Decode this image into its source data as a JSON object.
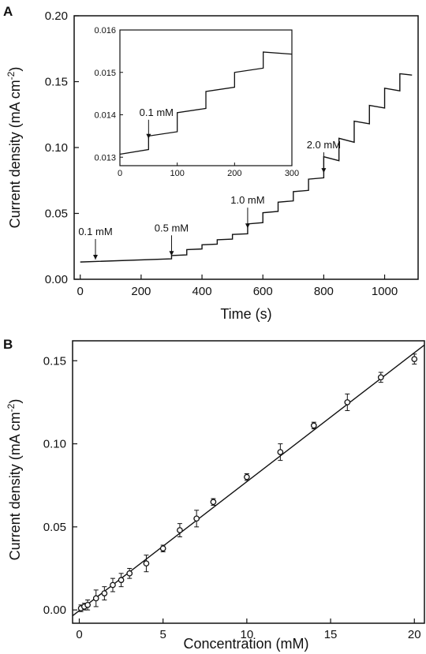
{
  "chart_data": [
    {
      "panel": "A",
      "type": "line",
      "xlabel": "Time (s)",
      "ylabel": "Current density (mA cm-2)",
      "ylabel_main": "Current density (mA cm",
      "ylabel_sup": "-2",
      "ylabel_close": ")",
      "xlim": [
        -20,
        1110
      ],
      "ylim": [
        0,
        0.2
      ],
      "xticks": [
        0,
        200,
        400,
        600,
        800,
        1000
      ],
      "yticks": [
        0.0,
        0.05,
        0.1,
        0.15,
        0.2
      ],
      "ytick_labels": [
        "0.00",
        "0.05",
        "0.10",
        "0.15",
        "0.20"
      ],
      "xtick_labels": [
        "0",
        "200",
        "400",
        "600",
        "800",
        "1000"
      ],
      "steps": [
        {
          "start": 0,
          "end": 300,
          "y0": 0.0131,
          "y1": 0.0155
        },
        {
          "start": 300,
          "end": 350,
          "y0": 0.018,
          "y1": 0.0185
        },
        {
          "start": 350,
          "end": 400,
          "y0": 0.0225,
          "y1": 0.023
        },
        {
          "start": 400,
          "end": 450,
          "y0": 0.0262,
          "y1": 0.0267
        },
        {
          "start": 450,
          "end": 500,
          "y0": 0.03,
          "y1": 0.0305
        },
        {
          "start": 500,
          "end": 550,
          "y0": 0.034,
          "y1": 0.0345
        },
        {
          "start": 550,
          "end": 600,
          "y0": 0.042,
          "y1": 0.043
        },
        {
          "start": 600,
          "end": 650,
          "y0": 0.0505,
          "y1": 0.0515
        },
        {
          "start": 650,
          "end": 700,
          "y0": 0.0585,
          "y1": 0.0595
        },
        {
          "start": 700,
          "end": 750,
          "y0": 0.0665,
          "y1": 0.0675
        },
        {
          "start": 750,
          "end": 800,
          "y0": 0.076,
          "y1": 0.077
        },
        {
          "start": 800,
          "end": 850,
          "y0": 0.093,
          "y1": 0.09
        },
        {
          "start": 850,
          "end": 900,
          "y0": 0.107,
          "y1": 0.104
        },
        {
          "start": 900,
          "end": 950,
          "y0": 0.12,
          "y1": 0.118
        },
        {
          "start": 950,
          "end": 1000,
          "y0": 0.132,
          "y1": 0.13
        },
        {
          "start": 1000,
          "end": 1050,
          "y0": 0.145,
          "y1": 0.143
        },
        {
          "start": 1050,
          "end": 1090,
          "y0": 0.156,
          "y1": 0.155
        }
      ],
      "annotations": [
        {
          "text": "0.1 mM",
          "x": 50,
          "y": 0.0132
        },
        {
          "text": "0.5 mM",
          "x": 300,
          "y": 0.016
        },
        {
          "text": "1.0 mM",
          "x": 550,
          "y": 0.037
        },
        {
          "text": "2.0 mM",
          "x": 800,
          "y": 0.079
        }
      ],
      "inset": {
        "xlim": [
          0,
          300
        ],
        "ylim": [
          0.0128,
          0.016
        ],
        "xticks": [
          0,
          100,
          200,
          300
        ],
        "xtick_labels": [
          "0",
          "100",
          "200",
          "300"
        ],
        "yticks": [
          0.013,
          0.014,
          0.015,
          0.016
        ],
        "ytick_labels": [
          "0.013",
          "0.014",
          "0.015",
          "0.016"
        ],
        "steps": [
          {
            "start": 0,
            "end": 50,
            "y0": 0.01307,
            "y1": 0.01318
          },
          {
            "start": 50,
            "end": 100,
            "y0": 0.0135,
            "y1": 0.0136
          },
          {
            "start": 100,
            "end": 150,
            "y0": 0.01405,
            "y1": 0.01415
          },
          {
            "start": 150,
            "end": 200,
            "y0": 0.01455,
            "y1": 0.01465
          },
          {
            "start": 200,
            "end": 250,
            "y0": 0.015,
            "y1": 0.0151
          },
          {
            "start": 250,
            "end": 300,
            "y0": 0.01548,
            "y1": 0.01543
          }
        ],
        "annotation": {
          "text": "0.1 mM",
          "x": 50,
          "y": 0.0134
        }
      }
    },
    {
      "panel": "B",
      "type": "scatter",
      "xlabel": "Concentration (mM)",
      "ylabel": "Current density (mA cm-2)",
      "ylabel_main": "Current density (mA cm",
      "ylabel_sup": "-2",
      "ylabel_close": ")",
      "xlim": [
        -0.4,
        20.6
      ],
      "ylim": [
        -0.008,
        0.162
      ],
      "xticks": [
        0,
        5,
        10,
        15,
        20
      ],
      "xtick_labels": [
        "0",
        "5",
        "10",
        "15",
        "20"
      ],
      "yticks": [
        0.0,
        0.05,
        0.1,
        0.15
      ],
      "ytick_labels": [
        "0.00",
        "0.05",
        "0.10",
        "0.15"
      ],
      "points": [
        {
          "x": 0.1,
          "y": 0.001,
          "err": 0.002
        },
        {
          "x": 0.3,
          "y": 0.002,
          "err": 0.002
        },
        {
          "x": 0.5,
          "y": 0.003,
          "err": 0.003
        },
        {
          "x": 1.0,
          "y": 0.007,
          "err": 0.005
        },
        {
          "x": 1.5,
          "y": 0.01,
          "err": 0.004
        },
        {
          "x": 2.0,
          "y": 0.015,
          "err": 0.004
        },
        {
          "x": 2.5,
          "y": 0.018,
          "err": 0.004
        },
        {
          "x": 3.0,
          "y": 0.022,
          "err": 0.003
        },
        {
          "x": 4.0,
          "y": 0.028,
          "err": 0.005
        },
        {
          "x": 5.0,
          "y": 0.037,
          "err": 0.002
        },
        {
          "x": 6.0,
          "y": 0.048,
          "err": 0.004
        },
        {
          "x": 7.0,
          "y": 0.055,
          "err": 0.005
        },
        {
          "x": 8.0,
          "y": 0.065,
          "err": 0.002
        },
        {
          "x": 10.0,
          "y": 0.08,
          "err": 0.002
        },
        {
          "x": 12.0,
          "y": 0.095,
          "err": 0.005
        },
        {
          "x": 14.0,
          "y": 0.111,
          "err": 0.002
        },
        {
          "x": 16.0,
          "y": 0.125,
          "err": 0.005
        },
        {
          "x": 18.0,
          "y": 0.14,
          "err": 0.003
        },
        {
          "x": 20.0,
          "y": 0.151,
          "err": 0.003
        }
      ],
      "fit": {
        "x": [
          -0.4,
          20.6
        ],
        "y": [
          -0.0035,
          0.1595
        ]
      }
    }
  ]
}
